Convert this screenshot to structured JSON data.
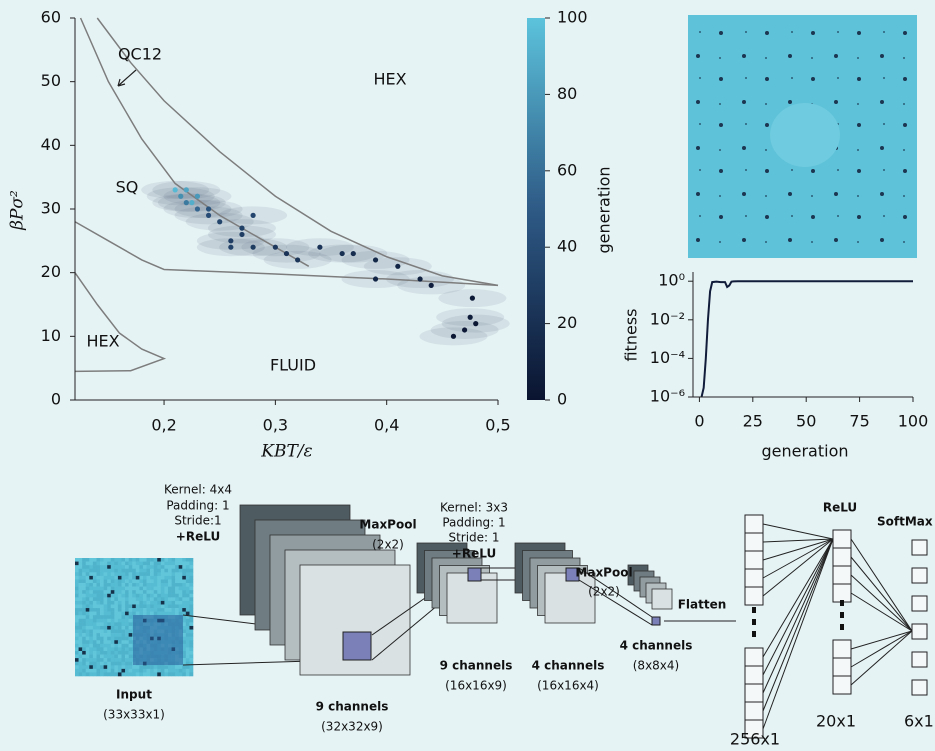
{
  "chart_data": [
    {
      "type": "scatter",
      "x_label": "KBT/ε",
      "y_label": "βPσ²",
      "xlim": [
        0.12,
        0.5
      ],
      "ylim": [
        0,
        60
      ],
      "xticks": [
        {
          "value": 0.2,
          "label": "0,2"
        },
        {
          "value": 0.3,
          "label": "0,3"
        },
        {
          "value": 0.4,
          "label": "0,4"
        },
        {
          "value": 0.5,
          "label": "0,5"
        }
      ],
      "yticks": [
        0,
        10,
        20,
        30,
        40,
        50,
        60
      ],
      "region_labels": [
        "QC12",
        "HEX",
        "SQ",
        "HEX",
        "FLUID"
      ],
      "boundary_color": "#7d7d7d",
      "boundaries": [
        {
          "x": [
            0.14,
            0.17,
            0.2,
            0.25,
            0.3,
            0.35,
            0.4,
            0.45,
            0.5
          ],
          "y": [
            60,
            53,
            47,
            39,
            32,
            26.5,
            22.5,
            19.5,
            18
          ]
        },
        {
          "x": [
            0.125,
            0.15,
            0.18,
            0.21,
            0.25,
            0.28,
            0.3,
            0.33
          ],
          "y": [
            60,
            50,
            41,
            34,
            29,
            26,
            24,
            21
          ]
        },
        {
          "x": [
            0.12,
            0.15,
            0.18,
            0.2,
            0.3,
            0.4,
            0.5
          ],
          "y": [
            28,
            25,
            22,
            20.5,
            19.8,
            19,
            18
          ]
        },
        {
          "x": [
            0.12,
            0.14,
            0.16,
            0.18,
            0.2,
            0.17,
            0.12
          ],
          "y": [
            20,
            15,
            10.5,
            8,
            6.5,
            4.6,
            4.5
          ]
        }
      ],
      "x": [
        0.46,
        0.47,
        0.48,
        0.477,
        0.475,
        0.44,
        0.43,
        0.41,
        0.39,
        0.39,
        0.37,
        0.36,
        0.34,
        0.31,
        0.3,
        0.32,
        0.28,
        0.27,
        0.26,
        0.27,
        0.25,
        0.26,
        0.28,
        0.24,
        0.24,
        0.23,
        0.22,
        0.215,
        0.22,
        0.21,
        0.225,
        0.23
      ],
      "y": [
        10,
        11,
        12,
        16,
        13,
        18,
        19,
        21,
        22,
        19,
        23,
        23,
        24,
        23,
        24,
        22,
        24,
        26,
        25,
        27,
        28,
        24,
        29,
        29,
        30,
        30,
        31,
        32,
        33,
        33,
        31,
        32
      ],
      "generation": [
        2,
        3,
        2,
        4,
        5,
        8,
        10,
        12,
        14,
        12,
        18,
        20,
        22,
        22,
        25,
        24,
        28,
        30,
        30,
        32,
        35,
        33,
        36,
        40,
        45,
        55,
        65,
        75,
        85,
        95,
        90,
        80
      ],
      "colorbar": {
        "label": "generation",
        "lim": [
          0,
          100
        ],
        "ticks": [
          0,
          20,
          40,
          60,
          80,
          100
        ],
        "colors": [
          "#0a1430",
          "#2e5a86",
          "#5cc3dc"
        ]
      }
    },
    {
      "type": "line",
      "x_label": "generation",
      "y_label": "fitness",
      "xlim": [
        -3,
        100
      ],
      "ylim": [
        1e-06,
        3
      ],
      "log_y": true,
      "xticks": [
        0,
        25,
        50,
        75,
        100
      ],
      "yticks": [
        {
          "value": 1,
          "label": "10⁰"
        },
        {
          "value": 0.01,
          "label": "10⁻²"
        },
        {
          "value": 0.0001,
          "label": "10⁻⁴"
        },
        {
          "value": 1e-06,
          "label": "10⁻⁶"
        }
      ],
      "x": [
        1,
        2,
        3,
        4,
        5,
        6,
        8,
        10,
        12,
        13,
        14,
        15,
        16,
        18,
        20,
        25,
        30,
        40,
        50,
        60,
        70,
        80,
        90,
        100
      ],
      "series": [
        {
          "color": "#111c3a",
          "values": [
            1e-06,
            3e-06,
            0.0001,
            0.01,
            0.3,
            0.9,
            0.95,
            0.9,
            0.9,
            0.5,
            0.6,
            0.95,
            0.98,
            1,
            1,
            1,
            1,
            1,
            1,
            1,
            1,
            1,
            1,
            1
          ]
        }
      ]
    }
  ],
  "diagram": {
    "conv1": {
      "kernel": "Kernel: 4x4",
      "padding": "Padding: 1",
      "stride": "Stride:1",
      "activation": "+ReLU"
    },
    "pool1": {
      "name": "MaxPool",
      "size": "(2x2)"
    },
    "conv2": {
      "kernel": "Kernel: 3x3",
      "padding": "Padding: 1",
      "stride": "Stride: 1",
      "activation": "+ReLU"
    },
    "pool2": {
      "name": "MaxPool",
      "size": "(2x2)"
    },
    "flatten": "Flatten",
    "dense_activation": "ReLU",
    "output_activation": "SoftMax",
    "input": {
      "name": "Input",
      "shape": "(33x33x1)"
    },
    "maps": [
      {
        "name": "9 channels",
        "shape": "(32x32x9)"
      },
      {
        "name": "9 channels",
        "shape": "(16x16x9)"
      },
      {
        "name": "4 channels",
        "shape": "(16x16x4)"
      },
      {
        "name": "4 channels",
        "shape": "(8x8x4)"
      }
    ],
    "vectors": [
      "256x1",
      "20x1",
      "6x1"
    ]
  }
}
